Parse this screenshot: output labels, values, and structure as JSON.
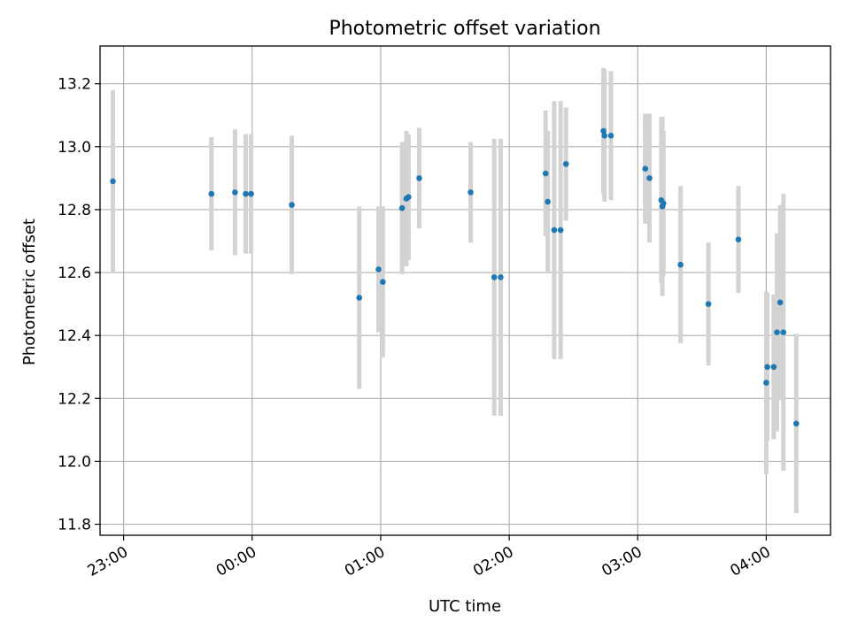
{
  "chart_data": {
    "type": "scatter",
    "title": "Photometric offset variation",
    "xlabel": "UTC time",
    "ylabel": "Photometric offset",
    "xlim": [
      "22:49",
      "04:30"
    ],
    "ylim": [
      11.765,
      13.32
    ],
    "x_ticks": [
      "23:00",
      "00:00",
      "01:00",
      "02:00",
      "03:00",
      "04:00"
    ],
    "y_ticks": [
      "11.8",
      "12.0",
      "12.2",
      "12.4",
      "12.6",
      "12.8",
      "13.0",
      "13.2"
    ],
    "grid": true,
    "colors": {
      "point": "#1f77b4",
      "error_bar": "#d3d3d3"
    },
    "points": [
      {
        "x": "22:55",
        "y": 12.89,
        "err": 0.29
      },
      {
        "x": "23:41",
        "y": 12.85,
        "err": 0.18
      },
      {
        "x": "23:52",
        "y": 12.855,
        "err": 0.2
      },
      {
        "x": "23:57",
        "y": 12.85,
        "err": 0.19
      },
      {
        "x": "23:59.5",
        "y": 12.85,
        "err": 0.19
      },
      {
        "x": "00:18.5",
        "y": 12.815,
        "err": 0.22
      },
      {
        "x": "00:50",
        "y": 12.52,
        "err": 0.29
      },
      {
        "x": "00:59",
        "y": 12.61,
        "err": 0.2
      },
      {
        "x": "01:01",
        "y": 12.57,
        "err": 0.24
      },
      {
        "x": "01:10",
        "y": 12.805,
        "err": 0.21
      },
      {
        "x": "01:12",
        "y": 12.835,
        "err": 0.215
      },
      {
        "x": "01:13",
        "y": 12.84,
        "err": 0.2
      },
      {
        "x": "01:18",
        "y": 12.9,
        "err": 0.16
      },
      {
        "x": "01:42",
        "y": 12.855,
        "err": 0.16
      },
      {
        "x": "01:53",
        "y": 12.585,
        "err": 0.44
      },
      {
        "x": "01:56",
        "y": 12.585,
        "err": 0.44
      },
      {
        "x": "02:17",
        "y": 12.915,
        "err": 0.2
      },
      {
        "x": "02:18",
        "y": 12.825,
        "err": 0.225
      },
      {
        "x": "02:21",
        "y": 12.735,
        "err": 0.41
      },
      {
        "x": "02:24",
        "y": 12.735,
        "err": 0.41
      },
      {
        "x": "02:26.5",
        "y": 12.945,
        "err": 0.18
      },
      {
        "x": "02:44",
        "y": 13.05,
        "err": 0.2
      },
      {
        "x": "02:44.5",
        "y": 13.035,
        "err": 0.21
      },
      {
        "x": "02:47.5",
        "y": 13.035,
        "err": 0.205
      },
      {
        "x": "03:03.5",
        "y": 12.93,
        "err": 0.175
      },
      {
        "x": "03:05.5",
        "y": 12.9,
        "err": 0.205
      },
      {
        "x": "03:11",
        "y": 12.83,
        "err": 0.265
      },
      {
        "x": "03:11.5",
        "y": 12.81,
        "err": 0.285
      },
      {
        "x": "03:12",
        "y": 12.82,
        "err": 0.23
      },
      {
        "x": "03:20",
        "y": 12.625,
        "err": 0.25
      },
      {
        "x": "03:33",
        "y": 12.5,
        "err": 0.195
      },
      {
        "x": "03:47",
        "y": 12.705,
        "err": 0.17
      },
      {
        "x": "04:00",
        "y": 12.25,
        "err": 0.29
      },
      {
        "x": "04:00.5",
        "y": 12.3,
        "err": 0.235
      },
      {
        "x": "04:03.5",
        "y": 12.3,
        "err": 0.23
      },
      {
        "x": "04:05",
        "y": 12.41,
        "err": 0.315
      },
      {
        "x": "04:06.5",
        "y": 12.505,
        "err": 0.31
      },
      {
        "x": "04:08",
        "y": 12.41,
        "err": 0.44
      },
      {
        "x": "04:14",
        "y": 12.12,
        "err": 0.285
      }
    ]
  }
}
